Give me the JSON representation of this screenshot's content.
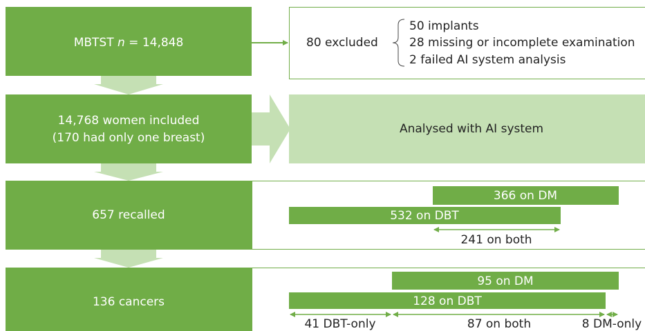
{
  "steps": [
    {
      "label_parts": [
        "MBTST ",
        "n",
        " = 14,848"
      ]
    },
    {
      "lines": [
        "14,768 women included",
        "(170 had only one breast)"
      ]
    },
    {
      "label": "657 recalled"
    },
    {
      "label": "136 cancers"
    }
  ],
  "exclusion": {
    "label": "80 excluded",
    "reasons": [
      "50 implants",
      "28 missing or incomplete examination",
      "2 failed AI system analysis"
    ]
  },
  "analysis": {
    "label": "Analysed with AI system"
  },
  "recalled": {
    "dm": "366 on DM",
    "dbt": "532 on DBT",
    "both": "241 on both"
  },
  "cancers": {
    "dm": "95 on DM",
    "dbt": "128 on DBT",
    "dbt_only": "41 DBT-only",
    "both": "87 on both",
    "dm_only": "8 DM-only"
  }
}
